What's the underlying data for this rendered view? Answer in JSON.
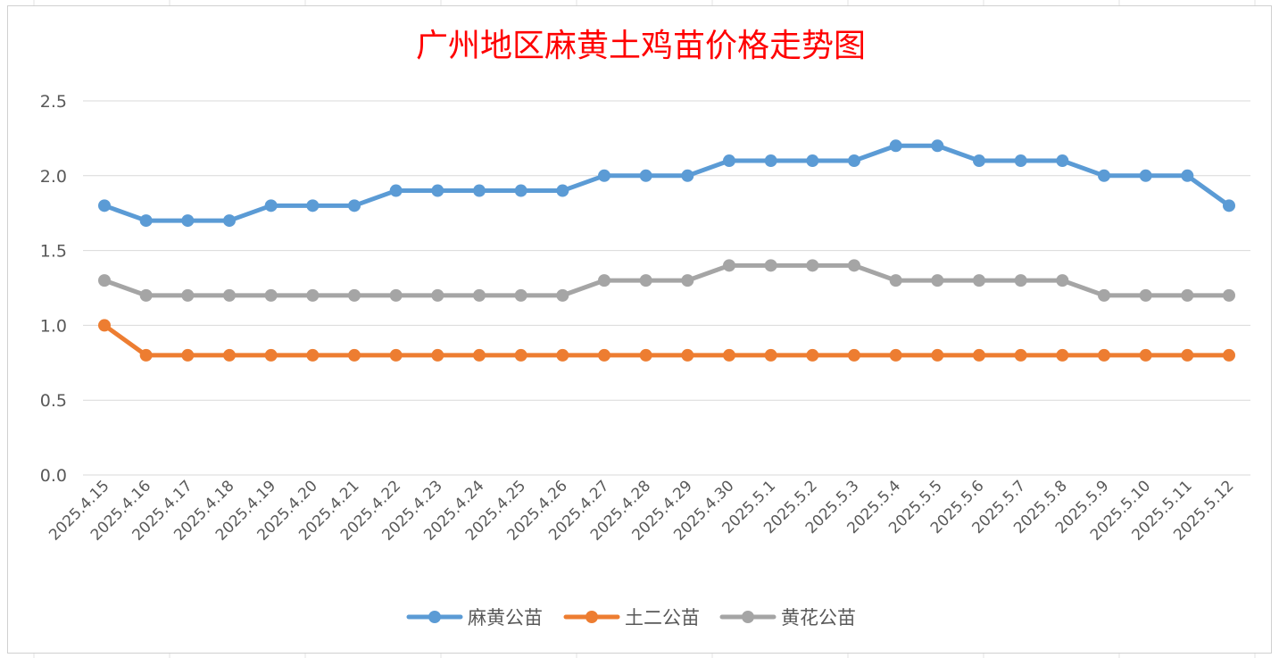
{
  "chart_data": {
    "type": "line",
    "title": "广州地区麻黄土鸡苗价格走势图",
    "xlabel": "",
    "ylabel": "",
    "ylim": [
      0,
      2.5
    ],
    "yticks": [
      "0.0",
      "0.5",
      "1.0",
      "1.5",
      "2.0",
      "2.5"
    ],
    "grid": true,
    "legend": "bottom",
    "categories": [
      "2025.4.15",
      "2025.4.16",
      "2025.4.17",
      "2025.4.18",
      "2025.4.19",
      "2025.4.20",
      "2025.4.21",
      "2025.4.22",
      "2025.4.23",
      "2025.4.24",
      "2025.4.25",
      "2025.4.26",
      "2025.4.27",
      "2025.4.28",
      "2025.4.29",
      "2025.4.30",
      "2025.5.1",
      "2025.5.2",
      "2025.5.3",
      "2025.5.4",
      "2025.5.5",
      "2025.5.6",
      "2025.5.7",
      "2025.5.8",
      "2025.5.9",
      "2025.5.10",
      "2025.5.11",
      "2025.5.12"
    ],
    "series": [
      {
        "name": "麻黄公苗",
        "color": "#5b9bd5",
        "values": [
          1.8,
          1.7,
          1.7,
          1.7,
          1.8,
          1.8,
          1.8,
          1.9,
          1.9,
          1.9,
          1.9,
          1.9,
          2.0,
          2.0,
          2.0,
          2.1,
          2.1,
          2.1,
          2.1,
          2.2,
          2.2,
          2.1,
          2.1,
          2.1,
          2.0,
          2.0,
          2.0,
          1.8
        ]
      },
      {
        "name": "土二公苗",
        "color": "#ed7d31",
        "values": [
          1.0,
          0.8,
          0.8,
          0.8,
          0.8,
          0.8,
          0.8,
          0.8,
          0.8,
          0.8,
          0.8,
          0.8,
          0.8,
          0.8,
          0.8,
          0.8,
          0.8,
          0.8,
          0.8,
          0.8,
          0.8,
          0.8,
          0.8,
          0.8,
          0.8,
          0.8,
          0.8,
          0.8
        ]
      },
      {
        "name": "黄花公苗",
        "color": "#a5a5a5",
        "values": [
          1.3,
          1.2,
          1.2,
          1.2,
          1.2,
          1.2,
          1.2,
          1.2,
          1.2,
          1.2,
          1.2,
          1.2,
          1.3,
          1.3,
          1.3,
          1.4,
          1.4,
          1.4,
          1.4,
          1.3,
          1.3,
          1.3,
          1.3,
          1.3,
          1.2,
          1.2,
          1.2,
          1.2
        ]
      }
    ]
  }
}
